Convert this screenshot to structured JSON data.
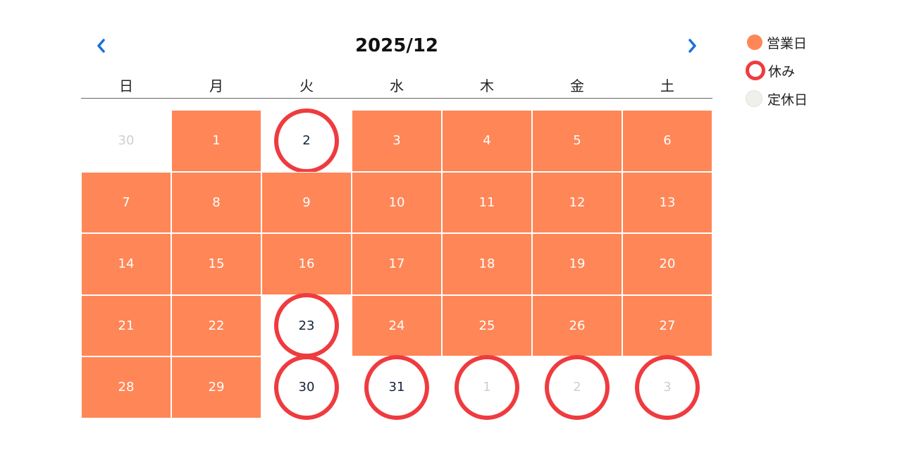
{
  "calendar": {
    "title": "2025/12",
    "prev_icon": "chevron-left-icon",
    "next_icon": "chevron-right-icon",
    "accent_color": "#1a6fe0",
    "weekdays": [
      "日",
      "月",
      "火",
      "水",
      "木",
      "金",
      "土"
    ],
    "days": [
      {
        "label": "30",
        "status": "other"
      },
      {
        "label": "1",
        "status": "open"
      },
      {
        "label": "2",
        "status": "closed"
      },
      {
        "label": "3",
        "status": "open"
      },
      {
        "label": "4",
        "status": "open"
      },
      {
        "label": "5",
        "status": "open"
      },
      {
        "label": "6",
        "status": "open"
      },
      {
        "label": "7",
        "status": "open"
      },
      {
        "label": "8",
        "status": "open"
      },
      {
        "label": "9",
        "status": "open"
      },
      {
        "label": "10",
        "status": "open"
      },
      {
        "label": "11",
        "status": "open"
      },
      {
        "label": "12",
        "status": "open"
      },
      {
        "label": "13",
        "status": "open"
      },
      {
        "label": "14",
        "status": "open"
      },
      {
        "label": "15",
        "status": "open"
      },
      {
        "label": "16",
        "status": "open"
      },
      {
        "label": "17",
        "status": "open"
      },
      {
        "label": "18",
        "status": "open"
      },
      {
        "label": "19",
        "status": "open"
      },
      {
        "label": "20",
        "status": "open"
      },
      {
        "label": "21",
        "status": "open"
      },
      {
        "label": "22",
        "status": "open"
      },
      {
        "label": "23",
        "status": "closed"
      },
      {
        "label": "24",
        "status": "open"
      },
      {
        "label": "25",
        "status": "open"
      },
      {
        "label": "26",
        "status": "open"
      },
      {
        "label": "27",
        "status": "open"
      },
      {
        "label": "28",
        "status": "open"
      },
      {
        "label": "29",
        "status": "open"
      },
      {
        "label": "30",
        "status": "closed"
      },
      {
        "label": "31",
        "status": "closed"
      },
      {
        "label": "1",
        "status": "other-closed"
      },
      {
        "label": "2",
        "status": "other-closed"
      },
      {
        "label": "3",
        "status": "other-closed"
      }
    ]
  },
  "legend": {
    "open_label": "営業日",
    "closed_label": "休み",
    "regular_holiday_label": "定休日"
  },
  "colors": {
    "open": "#ff8657",
    "closed_ring": "#ef3b3f",
    "regular_holiday": "#f0f0eb"
  }
}
